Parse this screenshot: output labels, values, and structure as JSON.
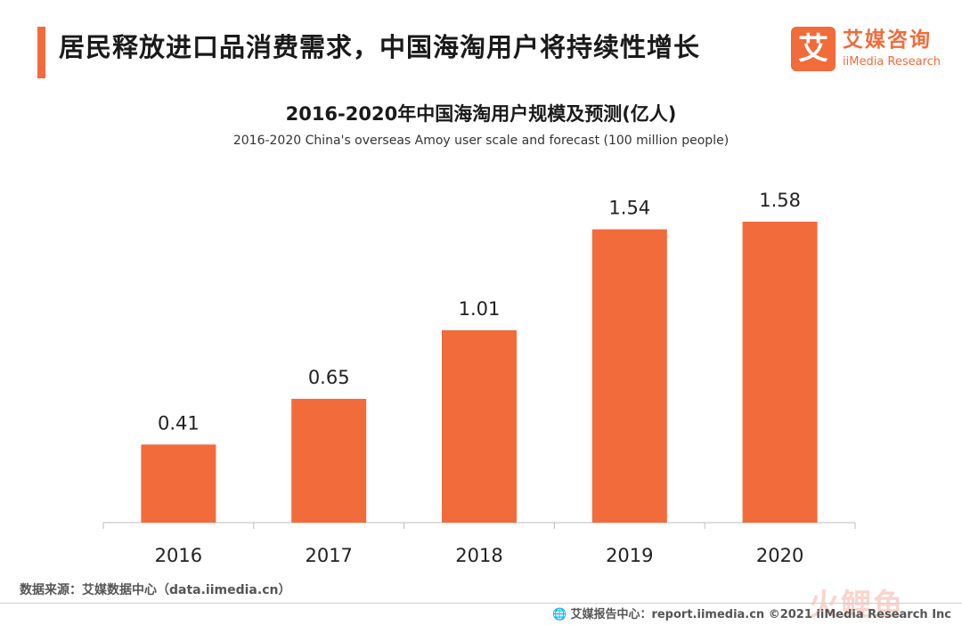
{
  "header": {
    "title": "居民释放进口品消费需求，中国海淘用户将持续性增长"
  },
  "logo": {
    "mark": "艾",
    "cn": "艾媒咨询",
    "en": "iiMedia Research"
  },
  "chart_data": {
    "type": "bar",
    "title": "2016-2020年中国海淘用户规模及预测(亿人)",
    "subtitle": "2016-2020 China's overseas Amoy user scale and forecast (100 million people)",
    "categories": [
      "2016",
      "2017",
      "2018",
      "2019",
      "2020"
    ],
    "values": [
      0.41,
      0.65,
      1.01,
      1.54,
      1.58
    ],
    "value_labels": [
      "0.41",
      "0.65",
      "1.01",
      "1.54",
      "1.58"
    ],
    "xlabel": "",
    "ylabel": "",
    "ylim": [
      0,
      1.58
    ],
    "grid": false,
    "bar_color": "#f26b3a"
  },
  "footer": {
    "source": "数据来源：艾媒数据中心（data.iimedia.cn）",
    "globe_icon": "🌐",
    "report": "艾媒报告中心：report.iimedia.cn  ©2021  iiMedia Research  Inc",
    "watermark": "火鲤鱼"
  },
  "colors": {
    "accent": "#f26b3a"
  }
}
